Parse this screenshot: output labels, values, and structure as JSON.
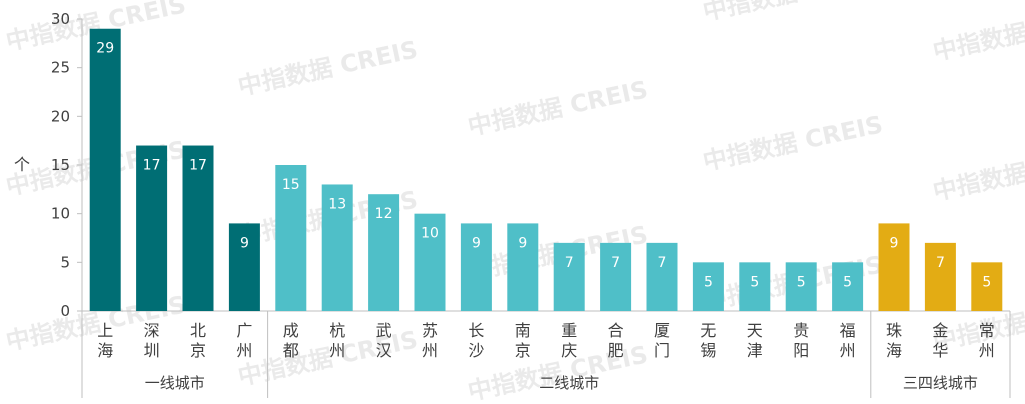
{
  "chart_data": {
    "type": "bar",
    "ylabel": "个",
    "ylim": [
      0,
      30
    ],
    "yticks": [
      0,
      5,
      10,
      15,
      20,
      25,
      30
    ],
    "categories": [
      "上海",
      "深圳",
      "北京",
      "广州",
      "成都",
      "杭州",
      "武汉",
      "苏州",
      "长沙",
      "南京",
      "重庆",
      "合肥",
      "厦门",
      "无锡",
      "天津",
      "贵阳",
      "福州",
      "珠海",
      "金华",
      "常州"
    ],
    "values": [
      29,
      17,
      17,
      9,
      15,
      13,
      12,
      10,
      9,
      9,
      7,
      7,
      7,
      5,
      5,
      5,
      5,
      9,
      7,
      5
    ],
    "groups": [
      {
        "label": "一线城市",
        "start": 0,
        "end": 3,
        "color": "#006e74"
      },
      {
        "label": "二线城市",
        "start": 4,
        "end": 16,
        "color": "#4fbfc8"
      },
      {
        "label": "三四线城市",
        "start": 17,
        "end": 19,
        "color": "#e3ac14"
      }
    ],
    "grid": false,
    "legend": "none"
  },
  "watermark": "中指数据 CREIS"
}
